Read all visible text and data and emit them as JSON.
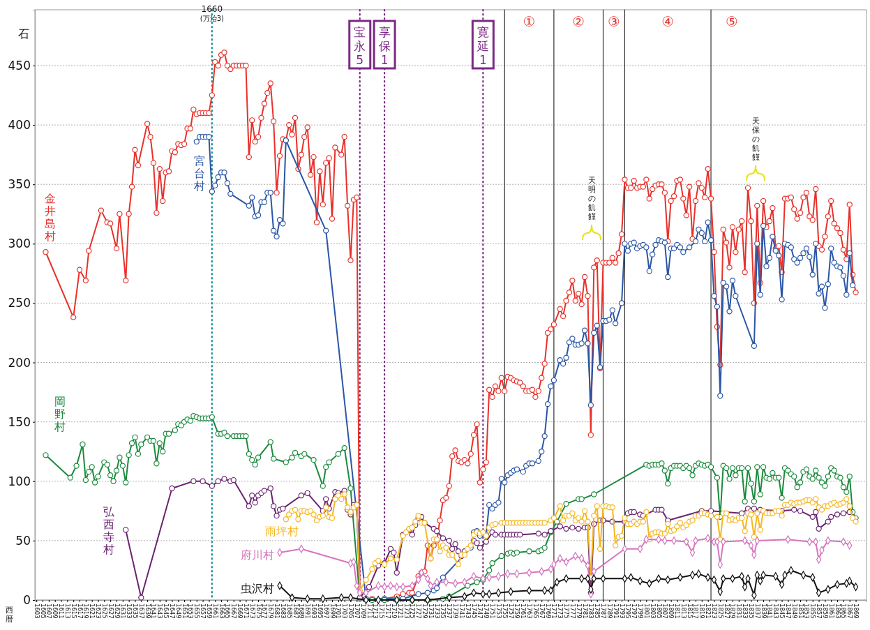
{
  "chart_data": {
    "type": "line",
    "ylabel": "石",
    "xlabel": "西暦",
    "xlim": [
      1602.5,
      1872.5
    ],
    "ylim": [
      0,
      497
    ],
    "xticks": [
      1603,
      1605,
      1607,
      1609,
      1611,
      1613,
      1615,
      1617,
      1619,
      1621,
      1623,
      1625,
      1627,
      1629,
      1631,
      1633,
      1635,
      1637,
      1639,
      1641,
      1643,
      1645,
      1647,
      1649,
      1651,
      1653,
      1655,
      1657,
      1659,
      1661,
      1663,
      1665,
      1667,
      1669,
      1671,
      1673,
      1675,
      1677,
      1679,
      1681,
      1683,
      1685,
      1687,
      1689,
      1691,
      1693,
      1695,
      1697,
      1699,
      1701,
      1703,
      1705,
      1707,
      1709,
      1711,
      1713,
      1715,
      1717,
      1719,
      1721,
      1723,
      1725,
      1727,
      1729,
      1731,
      1733,
      1735,
      1737,
      1739,
      1741,
      1743,
      1745,
      1747,
      1749,
      1751,
      1753,
      1755,
      1757,
      1759,
      1761,
      1763,
      1765,
      1767,
      1769,
      1771,
      1773,
      1775,
      1777,
      1779,
      1781,
      1783,
      1785,
      1787,
      1789,
      1791,
      1793,
      1795,
      1797,
      1799,
      1801,
      1803,
      1805,
      1807,
      1809,
      1811,
      1813,
      1815,
      1817,
      1819,
      1821,
      1823,
      1825,
      1827,
      1829,
      1831,
      1833,
      1835,
      1837,
      1839,
      1841,
      1843,
      1845,
      1847,
      1849,
      1851,
      1853,
      1855,
      1857,
      1859,
      1861,
      1863,
      1865,
      1867,
      1869
    ],
    "yticks": [
      0,
      50,
      100,
      150,
      200,
      250,
      300,
      350,
      400,
      450
    ],
    "grid": "y",
    "marker": "circle",
    "line_style": "solid",
    "series": [
      {
        "name": "金井島村",
        "color": "#e8312b",
        "x": [
          1606,
          1615,
          1617,
          1619,
          1620,
          1624,
          1626,
          1627,
          1629,
          1630,
          1632,
          1633,
          1634,
          1635,
          1636,
          1639,
          1640,
          1641,
          1642,
          1643,
          1644,
          1645,
          1646,
          1647,
          1648,
          1649,
          1650,
          1651,
          1652,
          1653,
          1654,
          1655,
          1656,
          1657,
          1658,
          1659,
          1660,
          1661,
          1662,
          1663,
          1664,
          1665,
          1666,
          1667,
          1668,
          1669,
          1670,
          1671,
          1672,
          1673,
          1674,
          1675,
          1676,
          1677,
          1678,
          1679,
          1680,
          1681,
          1682,
          1683,
          1684,
          1685,
          1686,
          1687,
          1688,
          1689,
          1690,
          1691,
          1692,
          1693,
          1694,
          1695,
          1696,
          1697,
          1698,
          1699,
          1700,
          1702,
          1703,
          1704,
          1705,
          1706,
          1707,
          1708,
          1712,
          1716,
          1720,
          1722,
          1724,
          1725,
          1727,
          1728,
          1729,
          1730,
          1731,
          1732,
          1733,
          1734,
          1735,
          1736,
          1737,
          1738,
          1739,
          1740,
          1741,
          1742,
          1743,
          1744,
          1745,
          1746,
          1747,
          1748,
          1749,
          1750,
          1751,
          1752,
          1753,
          1754,
          1755,
          1756,
          1757,
          1758,
          1759,
          1760,
          1761,
          1762,
          1763,
          1764,
          1765,
          1766,
          1767,
          1768,
          1769,
          1770,
          1771,
          1773,
          1774,
          1775,
          1776,
          1777,
          1778,
          1779,
          1780,
          1781,
          1782,
          1783,
          1784,
          1785,
          1786,
          1787,
          1788,
          1789,
          1790,
          1791,
          1792,
          1793,
          1794,
          1795,
          1796,
          1797,
          1798,
          1799,
          1800,
          1801,
          1802,
          1803,
          1804,
          1805,
          1806,
          1807,
          1808,
          1809,
          1810,
          1811,
          1812,
          1813,
          1814,
          1815,
          1816,
          1817,
          1818,
          1819,
          1820,
          1821,
          1822,
          1823,
          1824,
          1825,
          1826,
          1827,
          1828,
          1829,
          1830,
          1831,
          1832,
          1833,
          1834,
          1835,
          1836,
          1837,
          1838,
          1839,
          1840,
          1841,
          1842,
          1843,
          1844,
          1845,
          1846,
          1847,
          1848,
          1849,
          1850,
          1851,
          1852,
          1853,
          1854,
          1855,
          1856,
          1857,
          1858,
          1859,
          1860,
          1861,
          1862,
          1863,
          1864,
          1865,
          1866,
          1867,
          1868,
          1869
        ],
        "values": [
          293,
          238,
          278,
          269,
          294,
          328,
          318,
          317,
          296,
          325,
          269,
          325,
          348,
          379,
          366,
          401,
          390,
          368,
          326,
          363,
          336,
          360,
          361,
          378,
          377,
          384,
          383,
          384,
          397,
          397,
          413,
          409,
          410,
          410,
          410,
          410,
          425,
          453,
          450,
          459,
          461,
          450,
          447,
          450,
          450,
          450,
          450,
          450,
          373,
          404,
          386,
          390,
          406,
          418,
          427,
          435,
          403,
          343,
          374,
          388,
          387,
          400,
          392,
          406,
          363,
          375,
          390,
          398,
          358,
          373,
          318,
          361,
          333,
          368,
          372,
          321,
          381,
          375,
          390,
          332,
          286,
          337,
          339,
          2,
          1,
          1,
          3,
          5,
          6,
          6,
          20,
          23,
          24,
          46,
          35,
          46,
          50,
          67,
          84,
          86,
          96,
          121,
          126,
          117,
          116,
          118,
          115,
          123,
          139,
          148,
          99,
          110,
          116,
          177,
          171,
          180,
          176,
          187,
          176,
          188,
          187,
          185,
          184,
          183,
          180,
          176,
          176,
          177,
          171,
          176,
          187,
          199,
          225,
          228,
          232,
          245,
          239,
          252,
          259,
          269,
          252,
          258,
          249,
          272,
          256,
          139,
          280,
          286,
          195,
          284,
          284,
          284,
          288,
          284,
          292,
          308,
          354,
          347,
          347,
          353,
          347,
          348,
          348,
          354,
          338,
          346,
          349,
          350,
          350,
          343,
          302,
          336,
          340,
          353,
          354,
          338,
          324,
          348,
          304,
          336,
          351,
          347,
          339,
          363,
          338,
          293,
          230,
          198,
          312,
          301,
          280,
          314,
          293,
          312,
          319,
          276,
          347,
          319,
          250,
          332,
          267,
          336,
          314,
          319,
          330,
          296,
          298,
          276,
          338,
          338,
          339,
          329,
          321,
          326,
          339,
          343,
          323,
          320,
          346,
          298,
          295,
          306,
          323,
          336,
          317,
          313,
          309,
          295,
          287,
          333,
          274,
          259
        ]
      },
      {
        "name": "宮台村",
        "color": "#2a56a6",
        "x": [
          1655,
          1656,
          1657,
          1658,
          1659,
          1660,
          1661,
          1662,
          1663,
          1664,
          1665,
          1666,
          1672,
          1673,
          1674,
          1675,
          1676,
          1677,
          1678,
          1679,
          1680,
          1681,
          1682,
          1683,
          1684,
          1697,
          1710,
          1716,
          1722,
          1727,
          1730,
          1732,
          1733,
          1735,
          1744,
          1745,
          1746,
          1747,
          1748,
          1749,
          1750,
          1751,
          1752,
          1753,
          1754,
          1755,
          1756,
          1757,
          1758,
          1759,
          1761,
          1762,
          1763,
          1764,
          1766,
          1767,
          1768,
          1769,
          1770,
          1771,
          1773,
          1774,
          1775,
          1776,
          1777,
          1778,
          1779,
          1780,
          1781,
          1782,
          1783,
          1784,
          1785,
          1786,
          1787,
          1788,
          1789,
          1790,
          1791,
          1793,
          1794,
          1795,
          1796,
          1797,
          1798,
          1799,
          1800,
          1801,
          1802,
          1803,
          1804,
          1805,
          1806,
          1807,
          1808,
          1809,
          1810,
          1811,
          1812,
          1813,
          1815,
          1817,
          1818,
          1819,
          1820,
          1821,
          1822,
          1823,
          1824,
          1825,
          1826,
          1827,
          1828,
          1829,
          1830,
          1836,
          1837,
          1838,
          1839,
          1840,
          1841,
          1842,
          1843,
          1844,
          1845,
          1846,
          1847,
          1848,
          1849,
          1850,
          1851,
          1852,
          1853,
          1854,
          1855,
          1856,
          1857,
          1858,
          1859,
          1860,
          1861,
          1862,
          1863,
          1864,
          1865,
          1866,
          1867,
          1868
        ],
        "values": [
          386,
          390,
          390,
          390,
          390,
          344,
          349,
          356,
          360,
          360,
          351,
          342,
          332,
          339,
          323,
          324,
          335,
          335,
          343,
          343,
          311,
          306,
          320,
          317,
          387,
          311,
          1,
          1,
          1,
          5,
          6,
          8,
          10,
          19,
          44,
          57,
          58,
          54,
          56,
          55,
          80,
          77,
          80,
          82,
          102,
          99,
          105,
          107,
          109,
          110,
          108,
          113,
          115,
          115,
          117,
          125,
          138,
          165,
          180,
          185,
          202,
          199,
          204,
          217,
          220,
          215,
          215,
          216,
          227,
          216,
          164,
          225,
          231,
          196,
          235,
          235,
          236,
          244,
          233,
          250,
          300,
          294,
          300,
          301,
          296,
          298,
          299,
          297,
          277,
          291,
          299,
          303,
          302,
          301,
          272,
          296,
          296,
          299,
          297,
          293,
          297,
          302,
          312,
          309,
          302,
          318,
          303,
          256,
          247,
          172,
          267,
          264,
          243,
          269,
          256,
          214,
          300,
          257,
          315,
          281,
          288,
          306,
          294,
          290,
          253,
          300,
          299,
          297,
          287,
          284,
          288,
          292,
          296,
          289,
          274,
          300,
          258,
          264,
          246,
          266,
          296,
          284,
          281,
          280,
          273,
          257,
          292,
          265
        ]
      },
      {
        "name": "岡野村",
        "color": "#1b8a3c",
        "x": [
          1606,
          1614,
          1616,
          1618,
          1619,
          1620,
          1621,
          1622,
          1623,
          1625,
          1626,
          1627,
          1628,
          1629,
          1630,
          1631,
          1632,
          1633,
          1634,
          1635,
          1636,
          1637,
          1639,
          1640,
          1641,
          1642,
          1643,
          1644,
          1645,
          1646,
          1648,
          1649,
          1650,
          1651,
          1652,
          1653,
          1654,
          1655,
          1656,
          1657,
          1658,
          1659,
          1660,
          1662,
          1663,
          1664,
          1665,
          1667,
          1668,
          1669,
          1670,
          1671,
          1672,
          1673,
          1674,
          1675,
          1679,
          1680,
          1684,
          1686,
          1687,
          1689,
          1690,
          1693,
          1696,
          1697,
          1698,
          1701,
          1703,
          1705,
          1708,
          1712,
          1716,
          1720,
          1725,
          1730,
          1735,
          1737,
          1743,
          1746,
          1748,
          1750,
          1751,
          1754,
          1756,
          1757,
          1758,
          1759,
          1763,
          1766,
          1767,
          1768,
          1770,
          1772,
          1775,
          1779,
          1780,
          1784,
          1801,
          1802,
          1803,
          1804,
          1805,
          1806,
          1807,
          1808,
          1809,
          1810,
          1811,
          1812,
          1813,
          1814,
          1815,
          1816,
          1817,
          1818,
          1819,
          1820,
          1821,
          1822,
          1824,
          1825,
          1826,
          1827,
          1828,
          1829,
          1830,
          1831,
          1832,
          1833,
          1834,
          1835,
          1836,
          1837,
          1838,
          1839,
          1840,
          1841,
          1842,
          1843,
          1844,
          1845,
          1846,
          1847,
          1848,
          1849,
          1850,
          1851,
          1852,
          1853,
          1854,
          1855,
          1856,
          1857,
          1858,
          1859,
          1860,
          1861,
          1862,
          1863,
          1864,
          1865,
          1866,
          1867,
          1868,
          1869
        ],
        "values": [
          122,
          103,
          113,
          131,
          101,
          108,
          112,
          99,
          104,
          116,
          114,
          105,
          100,
          109,
          120,
          113,
          99,
          122,
          132,
          137,
          123,
          131,
          137,
          134,
          134,
          115,
          132,
          125,
          140,
          140,
          143,
          148,
          147,
          150,
          152,
          151,
          155,
          154,
          153,
          153,
          153,
          153,
          154,
          140,
          140,
          141,
          138,
          138,
          138,
          138,
          138,
          138,
          123,
          118,
          114,
          120,
          133,
          119,
          116,
          120,
          124,
          121,
          123,
          118,
          96,
          112,
          116,
          123,
          128,
          94,
          1,
          0,
          0,
          0,
          0,
          0,
          1,
          3,
          12,
          15,
          17,
          25,
          31,
          37,
          39,
          40,
          39,
          40,
          41,
          41,
          42,
          44,
          57,
          66,
          81,
          85,
          85,
          89,
          114,
          113,
          114,
          114,
          114,
          115,
          109,
          98,
          111,
          113,
          113,
          113,
          111,
          113,
          111,
          105,
          113,
          115,
          114,
          113,
          114,
          112,
          103,
          70,
          113,
          111,
          102,
          111,
          105,
          111,
          111,
          83,
          111,
          98,
          83,
          112,
          89,
          112,
          103,
          102,
          107,
          103,
          103,
          86,
          111,
          109,
          106,
          104,
          95,
          99,
          108,
          110,
          104,
          102,
          109,
          103,
          99,
          96,
          104,
          111,
          109,
          104,
          103,
          95,
          91,
          104,
          74,
          69
        ]
      },
      {
        "name": "弘西寺村",
        "color": "#6a2470",
        "x": [
          1632,
          1637,
          1647,
          1654,
          1657,
          1660,
          1662,
          1664,
          1666,
          1667,
          1672,
          1673,
          1674,
          1675,
          1676,
          1677,
          1679,
          1680,
          1681,
          1682,
          1683,
          1689,
          1691,
          1696,
          1697,
          1698,
          1700,
          1701,
          1703,
          1704,
          1705,
          1706,
          1707,
          1708,
          1711,
          1714,
          1716,
          1718,
          1719,
          1720,
          1722,
          1724,
          1725,
          1726,
          1727,
          1728,
          1729,
          1732,
          1733,
          1735,
          1737,
          1738,
          1739,
          1740,
          1741,
          1742,
          1745,
          1746,
          1747,
          1749,
          1751,
          1752,
          1754,
          1755,
          1756,
          1757,
          1758,
          1759,
          1760,
          1766,
          1768,
          1770,
          1773,
          1775,
          1777,
          1779,
          1781,
          1782,
          1783,
          1784,
          1786,
          1787,
          1790,
          1794,
          1795,
          1796,
          1797,
          1799,
          1800,
          1804,
          1805,
          1806,
          1808,
          1819,
          1822,
          1832,
          1834,
          1835,
          1836,
          1838,
          1845,
          1849,
          1851,
          1855,
          1856,
          1857,
          1860,
          1861,
          1863,
          1865,
          1867
        ],
        "values": [
          59,
          2,
          94,
          100,
          100,
          96,
          100,
          102,
          100,
          101,
          79,
          88,
          82,
          88,
          90,
          92,
          94,
          79,
          71,
          76,
          77,
          88,
          90,
          75,
          85,
          77,
          91,
          90,
          92,
          76,
          72,
          80,
          80,
          2,
          11,
          29,
          31,
          43,
          40,
          23,
          55,
          59,
          55,
          63,
          69,
          70,
          65,
          60,
          58,
          52,
          50,
          43,
          47,
          41,
          37,
          41,
          50,
          48,
          44,
          49,
          57,
          55,
          55,
          55,
          55,
          55,
          55,
          55,
          55,
          56,
          55,
          58,
          62,
          60,
          61,
          60,
          61,
          61,
          6,
          64,
          67,
          67,
          66,
          66,
          73,
          74,
          74,
          72,
          71,
          76,
          76,
          76,
          67,
          75,
          75,
          73,
          77,
          75,
          77,
          76,
          75,
          76,
          75,
          70,
          74,
          60,
          66,
          70,
          72,
          73,
          74
        ]
      },
      {
        "name": "雨坪村",
        "color": "#f6b620",
        "x": [
          1684,
          1685,
          1686,
          1687,
          1688,
          1689,
          1690,
          1691,
          1692,
          1693,
          1694,
          1695,
          1696,
          1697,
          1698,
          1699,
          1700,
          1701,
          1702,
          1703,
          1704,
          1705,
          1706,
          1707,
          1708,
          1710,
          1712,
          1713,
          1714,
          1716,
          1718,
          1720,
          1722,
          1723,
          1724,
          1725,
          1726,
          1727,
          1728,
          1729,
          1731,
          1732,
          1733,
          1734,
          1735,
          1736,
          1737,
          1738,
          1740,
          1741,
          1742,
          1743,
          1744,
          1745,
          1746,
          1747,
          1748,
          1749,
          1750,
          1751,
          1752,
          1754,
          1755,
          1756,
          1757,
          1758,
          1759,
          1760,
          1761,
          1762,
          1763,
          1764,
          1765,
          1766,
          1767,
          1768,
          1770,
          1771,
          1773,
          1774,
          1775,
          1776,
          1777,
          1778,
          1779,
          1780,
          1781,
          1782,
          1783,
          1784,
          1785,
          1786,
          1787,
          1788,
          1789,
          1790,
          1791,
          1792,
          1793,
          1794,
          1795,
          1796,
          1797,
          1798,
          1799,
          1800,
          1801,
          1802,
          1803,
          1804,
          1805,
          1806,
          1807,
          1808,
          1809,
          1810,
          1811,
          1812,
          1813,
          1814,
          1815,
          1816,
          1817,
          1818,
          1819,
          1820,
          1821,
          1822,
          1824,
          1825,
          1826,
          1827,
          1828,
          1829,
          1830,
          1831,
          1832,
          1833,
          1834,
          1835,
          1836,
          1837,
          1838,
          1839,
          1840,
          1841,
          1842,
          1843,
          1844,
          1845,
          1846,
          1847,
          1848,
          1849,
          1850,
          1851,
          1852,
          1853,
          1854,
          1855,
          1856,
          1857,
          1858,
          1859,
          1860,
          1861,
          1862,
          1863,
          1864,
          1865,
          1866,
          1867,
          1868,
          1869
        ],
        "values": [
          68,
          72,
          75,
          76,
          68,
          75,
          75,
          74,
          75,
          72,
          67,
          70,
          71,
          78,
          70,
          69,
          85,
          88,
          85,
          89,
          78,
          74,
          78,
          80,
          8,
          17,
          26,
          31,
          33,
          30,
          35,
          34,
          54,
          57,
          60,
          61,
          66,
          71,
          65,
          65,
          35,
          51,
          51,
          41,
          46,
          44,
          38,
          38,
          30,
          38,
          38,
          43,
          46,
          55,
          57,
          56,
          57,
          54,
          61,
          63,
          64,
          65,
          65,
          65,
          65,
          65,
          65,
          65,
          65,
          65,
          65,
          65,
          65,
          65,
          65,
          65,
          67,
          69,
          79,
          67,
          71,
          71,
          73,
          67,
          69,
          66,
          75,
          66,
          19,
          71,
          79,
          43,
          79,
          79,
          78,
          78,
          46,
          53,
          54,
          69,
          64,
          64,
          66,
          64,
          66,
          66,
          74,
          51,
          56,
          57,
          57,
          56,
          56,
          64,
          58,
          59,
          62,
          65,
          61,
          63,
          66,
          67,
          71,
          71,
          73,
          73,
          72,
          71,
          70,
          51,
          73,
          73,
          67,
          68,
          67,
          69,
          69,
          58,
          73,
          72,
          53,
          73,
          59,
          75,
          73,
          73,
          73,
          75,
          75,
          71,
          80,
          80,
          82,
          81,
          82,
          82,
          83,
          84,
          84,
          82,
          85,
          78,
          76,
          79,
          79,
          81,
          82,
          80,
          81,
          82,
          85,
          79,
          69,
          66
        ]
      },
      {
        "name": "府川村",
        "color": "#d675bf",
        "marker": "diamond",
        "x": [
          1682,
          1689,
          1705,
          1706,
          1707,
          1708,
          1710,
          1714,
          1716,
          1718,
          1720,
          1722,
          1725,
          1727,
          1728,
          1730,
          1731,
          1733,
          1736,
          1739,
          1742,
          1745,
          1748,
          1750,
          1753,
          1756,
          1759,
          1763,
          1767,
          1770,
          1771,
          1773,
          1775,
          1778,
          1780,
          1782,
          1783,
          1784,
          1794,
          1799,
          1801,
          1805,
          1807,
          1810,
          1814,
          1816,
          1817,
          1821,
          1823,
          1824,
          1825,
          1826,
          1833,
          1835,
          1836,
          1837,
          1847,
          1854,
          1856,
          1857,
          1858,
          1860,
          1865,
          1867
        ],
        "values": [
          40,
          43,
          31,
          32,
          12,
          6,
          6,
          12,
          11,
          12,
          11,
          11,
          12,
          17,
          23,
          18,
          12,
          15,
          15,
          14,
          15,
          20,
          18,
          19,
          20,
          22,
          22,
          23,
          24,
          26,
          30,
          35,
          32,
          37,
          35,
          29,
          5,
          24,
          43,
          43,
          51,
          51,
          50,
          50,
          49,
          40,
          50,
          52,
          49,
          49,
          30,
          49,
          50,
          46,
          38,
          50,
          51,
          49,
          49,
          34,
          42,
          50,
          49,
          46
        ]
      },
      {
        "name": "虫沢村",
        "color": "#111111",
        "marker": "diamond",
        "x": [
          1682,
          1686,
          1691,
          1696,
          1702,
          1705,
          1710,
          1714,
          1720,
          1725,
          1730,
          1737,
          1742,
          1745,
          1748,
          1750,
          1753,
          1757,
          1763,
          1768,
          1770,
          1772,
          1775,
          1780,
          1782,
          1783,
          1784,
          1787,
          1794,
          1796,
          1799,
          1802,
          1805,
          1808,
          1812,
          1816,
          1818,
          1821,
          1823,
          1825,
          1826,
          1829,
          1832,
          1833,
          1834,
          1836,
          1837,
          1838,
          1839,
          1843,
          1845,
          1846,
          1848,
          1852,
          1855,
          1857,
          1860,
          1863,
          1866,
          1867,
          1869
        ],
        "values": [
          12,
          2,
          1,
          1,
          2,
          2,
          0,
          0,
          0,
          0,
          0,
          2,
          3,
          6,
          5,
          5,
          6,
          7,
          8,
          8,
          8,
          15,
          18,
          18,
          18,
          9,
          18,
          18,
          18,
          19,
          16,
          14,
          18,
          17,
          19,
          21,
          22,
          19,
          17,
          7,
          18,
          18,
          20,
          11,
          18,
          4,
          21,
          16,
          21,
          20,
          13,
          21,
          25,
          21,
          19,
          6,
          9,
          13,
          14,
          16,
          11
        ]
      }
    ],
    "ref_lines": [
      {
        "axis": "x",
        "value": 1660,
        "label": "1660\n(万治3)",
        "color": "#1a8c8c",
        "line_style": "dotted"
      },
      {
        "axis": "x",
        "value": 1708,
        "label": "宝永5",
        "color": "#7b2a85",
        "line_style": "dotted"
      },
      {
        "axis": "x",
        "value": 1716,
        "label": "享保1",
        "color": "#7b2a85",
        "line_style": "dotted"
      },
      {
        "axis": "x",
        "value": 1748,
        "label": "寛延1",
        "color": "#7b2a85",
        "line_style": "dotted"
      },
      {
        "axis": "x",
        "value": 1755,
        "color": "#333333",
        "line_style": "solid"
      },
      {
        "axis": "x",
        "value": 1771,
        "color": "#333333",
        "line_style": "solid"
      },
      {
        "axis": "x",
        "value": 1787,
        "color": "#333333",
        "line_style": "solid"
      },
      {
        "axis": "x",
        "value": 1794,
        "color": "#333333",
        "line_style": "solid"
      },
      {
        "axis": "x",
        "value": 1822,
        "color": "#333333",
        "line_style": "solid"
      }
    ],
    "annotations": [
      "①",
      "②",
      "③",
      "④",
      "⑤",
      "天明の飢饉",
      "天保の飢饉"
    ]
  }
}
